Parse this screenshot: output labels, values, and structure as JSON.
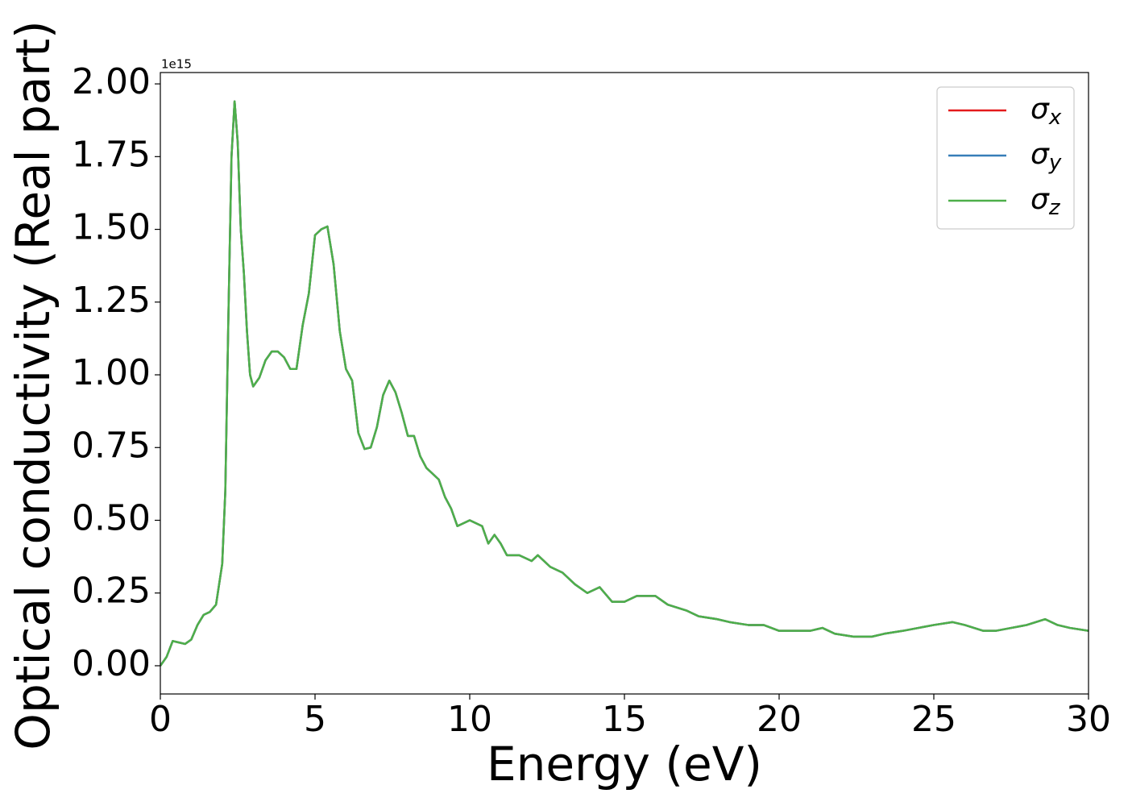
{
  "chart_data": {
    "type": "line",
    "xlabel": "Energy (eV)",
    "ylabel": "Optical conductivity (Real part)",
    "y_offset_label": "1e15",
    "xlim": [
      0,
      30
    ],
    "ylim": [
      -0.097,
      2.039
    ],
    "xticks": [
      0,
      5,
      10,
      15,
      20,
      25,
      30
    ],
    "yticks": [
      {
        "value": 0,
        "label": "0.00"
      },
      {
        "value": 0.25,
        "label": "0.25"
      },
      {
        "value": 0.5,
        "label": "0.50"
      },
      {
        "value": 0.75,
        "label": "0.75"
      },
      {
        "value": 1,
        "label": "1.00"
      },
      {
        "value": 1.25,
        "label": "1.25"
      },
      {
        "value": 1.5,
        "label": "1.50"
      },
      {
        "value": 1.75,
        "label": "1.75"
      },
      {
        "value": 2,
        "label": "2.00"
      }
    ],
    "legend": "upper right",
    "x": [
      0,
      0.2,
      0.4,
      0.6,
      0.8,
      1.0,
      1.2,
      1.4,
      1.6,
      1.8,
      2.0,
      2.1,
      2.2,
      2.3,
      2.4,
      2.5,
      2.6,
      2.7,
      2.8,
      2.9,
      3.0,
      3.2,
      3.4,
      3.6,
      3.8,
      4.0,
      4.2,
      4.4,
      4.6,
      4.8,
      5.0,
      5.2,
      5.4,
      5.6,
      5.8,
      6.0,
      6.2,
      6.4,
      6.6,
      6.8,
      7.0,
      7.2,
      7.4,
      7.6,
      7.8,
      8.0,
      8.2,
      8.4,
      8.6,
      8.8,
      9.0,
      9.2,
      9.4,
      9.6,
      9.8,
      10.0,
      10.4,
      10.6,
      10.8,
      11.0,
      11.2,
      11.6,
      12.0,
      12.2,
      12.6,
      13.0,
      13.4,
      13.8,
      14.2,
      14.6,
      15.0,
      15.4,
      16.0,
      16.4,
      17.0,
      17.4,
      18.0,
      18.4,
      19.0,
      19.5,
      20.0,
      20.5,
      21.0,
      21.4,
      21.8,
      22.4,
      23.0,
      23.4,
      24.0,
      24.5,
      25.0,
      25.6,
      26.0,
      26.6,
      27.0,
      27.5,
      28.0,
      28.6,
      29.0,
      29.4,
      30.0
    ],
    "series": [
      {
        "name": "σx",
        "color": "#e41a1c",
        "values": [
          0,
          0.03,
          0.085,
          0.08,
          0.075,
          0.09,
          0.14,
          0.175,
          0.185,
          0.21,
          0.35,
          0.6,
          1.2,
          1.75,
          1.94,
          1.8,
          1.5,
          1.35,
          1.15,
          1.0,
          0.96,
          0.99,
          1.05,
          1.08,
          1.08,
          1.06,
          1.02,
          1.02,
          1.17,
          1.28,
          1.48,
          1.5,
          1.51,
          1.38,
          1.15,
          1.02,
          0.98,
          0.8,
          0.745,
          0.75,
          0.82,
          0.93,
          0.98,
          0.94,
          0.87,
          0.79,
          0.79,
          0.72,
          0.68,
          0.66,
          0.64,
          0.58,
          0.54,
          0.48,
          0.49,
          0.5,
          0.48,
          0.42,
          0.45,
          0.42,
          0.38,
          0.38,
          0.36,
          0.38,
          0.34,
          0.32,
          0.28,
          0.25,
          0.27,
          0.22,
          0.22,
          0.24,
          0.24,
          0.21,
          0.19,
          0.17,
          0.16,
          0.15,
          0.14,
          0.14,
          0.12,
          0.12,
          0.12,
          0.13,
          0.11,
          0.1,
          0.1,
          0.11,
          0.12,
          0.13,
          0.14,
          0.15,
          0.14,
          0.12,
          0.12,
          0.13,
          0.14,
          0.16,
          0.14,
          0.13,
          0.12
        ]
      },
      {
        "name": "σy",
        "color": "#377eb8",
        "values": [
          0,
          0.03,
          0.085,
          0.08,
          0.075,
          0.09,
          0.14,
          0.175,
          0.185,
          0.21,
          0.35,
          0.6,
          1.2,
          1.75,
          1.94,
          1.8,
          1.5,
          1.35,
          1.15,
          1.0,
          0.96,
          0.99,
          1.05,
          1.08,
          1.08,
          1.06,
          1.02,
          1.02,
          1.17,
          1.28,
          1.48,
          1.5,
          1.51,
          1.38,
          1.15,
          1.02,
          0.98,
          0.8,
          0.745,
          0.75,
          0.82,
          0.93,
          0.98,
          0.94,
          0.87,
          0.79,
          0.79,
          0.72,
          0.68,
          0.66,
          0.64,
          0.58,
          0.54,
          0.48,
          0.49,
          0.5,
          0.48,
          0.42,
          0.45,
          0.42,
          0.38,
          0.38,
          0.36,
          0.38,
          0.34,
          0.32,
          0.28,
          0.25,
          0.27,
          0.22,
          0.22,
          0.24,
          0.24,
          0.21,
          0.19,
          0.17,
          0.16,
          0.15,
          0.14,
          0.14,
          0.12,
          0.12,
          0.12,
          0.13,
          0.11,
          0.1,
          0.1,
          0.11,
          0.12,
          0.13,
          0.14,
          0.15,
          0.14,
          0.12,
          0.12,
          0.13,
          0.14,
          0.16,
          0.14,
          0.13,
          0.12
        ]
      },
      {
        "name": "σz",
        "color": "#4daf4a",
        "values": [
          0,
          0.03,
          0.085,
          0.08,
          0.075,
          0.09,
          0.14,
          0.175,
          0.185,
          0.21,
          0.35,
          0.6,
          1.2,
          1.75,
          1.94,
          1.8,
          1.5,
          1.35,
          1.15,
          1.0,
          0.96,
          0.99,
          1.05,
          1.08,
          1.08,
          1.06,
          1.02,
          1.02,
          1.17,
          1.28,
          1.48,
          1.5,
          1.51,
          1.38,
          1.15,
          1.02,
          0.98,
          0.8,
          0.745,
          0.75,
          0.82,
          0.93,
          0.98,
          0.94,
          0.87,
          0.79,
          0.79,
          0.72,
          0.68,
          0.66,
          0.64,
          0.58,
          0.54,
          0.48,
          0.49,
          0.5,
          0.48,
          0.42,
          0.45,
          0.42,
          0.38,
          0.38,
          0.36,
          0.38,
          0.34,
          0.32,
          0.28,
          0.25,
          0.27,
          0.22,
          0.22,
          0.24,
          0.24,
          0.21,
          0.19,
          0.17,
          0.16,
          0.15,
          0.14,
          0.14,
          0.12,
          0.12,
          0.12,
          0.13,
          0.11,
          0.1,
          0.1,
          0.11,
          0.12,
          0.13,
          0.14,
          0.15,
          0.14,
          0.12,
          0.12,
          0.13,
          0.14,
          0.16,
          0.14,
          0.13,
          0.12
        ]
      }
    ]
  }
}
